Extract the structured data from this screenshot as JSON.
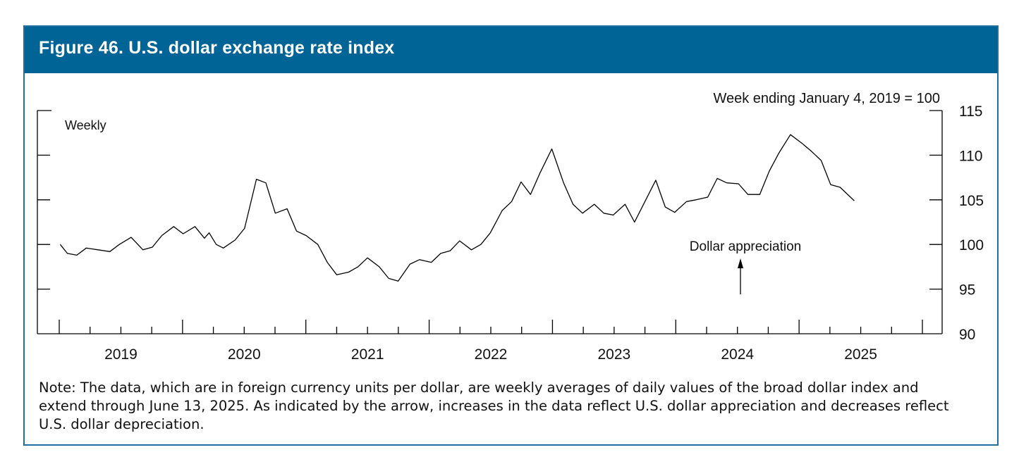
{
  "figure": {
    "title": "Figure 46. U.S. dollar exchange rate index",
    "note": "Note: The data, which are in foreign currency units per dollar, are weekly averages of daily values of the broad dollar index and extend through June 13, 2025. As indicated by the arrow, increases in the data reflect U.S. dollar appreciation and decreases reflect U.S. dollar depreciation."
  },
  "colors": {
    "header": "#006496",
    "line": "#000000"
  },
  "chart_data": {
    "type": "line",
    "title": "Figure 46. U.S. dollar exchange rate index",
    "frequency_label": "Weekly",
    "unit_label": "Week ending January 4, 2019 = 100",
    "annotation": {
      "text": "Dollar appreciation",
      "arrow": "up"
    },
    "ylim": [
      90,
      115
    ],
    "yticks": [
      90,
      95,
      100,
      105,
      110,
      115
    ],
    "xlim": [
      "2019-01-04",
      "2025-12-31"
    ],
    "xtick_labels": [
      "2019",
      "2020",
      "2021",
      "2022",
      "2023",
      "2024",
      "2025"
    ],
    "series": [
      {
        "x": [
          "2019-01-04",
          "2019-01-25",
          "2019-02-22",
          "2019-03-22",
          "2019-04-26",
          "2019-05-31",
          "2019-06-28",
          "2019-08-02",
          "2019-09-06",
          "2019-10-04",
          "2019-11-01",
          "2019-12-06",
          "2020-01-03",
          "2020-02-07",
          "2020-03-06",
          "2020-03-20",
          "2020-04-10",
          "2020-05-01",
          "2020-06-05",
          "2020-07-03",
          "2020-08-07",
          "2020-09-04",
          "2020-10-02",
          "2020-11-06",
          "2020-12-04",
          "2021-01-01",
          "2021-02-05",
          "2021-03-05",
          "2021-04-02",
          "2021-05-07",
          "2021-06-04",
          "2021-07-02",
          "2021-08-06",
          "2021-09-03",
          "2021-10-01",
          "2021-11-05",
          "2021-12-03",
          "2022-01-07",
          "2022-02-04",
          "2022-03-04",
          "2022-04-01",
          "2022-05-06",
          "2022-06-03",
          "2022-07-01",
          "2022-08-05",
          "2022-09-02",
          "2022-09-30",
          "2022-10-28",
          "2022-11-25",
          "2022-12-30",
          "2023-02-03",
          "2023-03-03",
          "2023-03-31",
          "2023-05-05",
          "2023-06-02",
          "2023-06-30",
          "2023-08-04",
          "2023-09-01",
          "2023-09-29",
          "2023-11-03",
          "2023-12-01",
          "2023-12-29",
          "2024-02-02",
          "2024-03-01",
          "2024-04-05",
          "2024-05-03",
          "2024-05-31",
          "2024-07-05",
          "2024-08-02",
          "2024-09-06",
          "2024-10-04",
          "2024-11-01",
          "2024-12-06",
          "2025-01-10",
          "2025-02-07",
          "2025-03-07",
          "2025-04-04",
          "2025-05-02",
          "2025-06-13"
        ],
        "values": [
          100.0,
          99.0,
          98.8,
          99.6,
          99.4,
          99.2,
          100.0,
          100.8,
          99.4,
          99.7,
          101.0,
          102.0,
          101.2,
          102.0,
          100.7,
          101.3,
          100.0,
          99.6,
          100.5,
          101.8,
          107.3,
          106.9,
          103.5,
          104.0,
          101.5,
          101.0,
          100.0,
          98.0,
          96.6,
          96.9,
          97.5,
          98.5,
          97.5,
          96.2,
          95.9,
          97.8,
          98.3,
          98.0,
          99.0,
          99.3,
          100.4,
          99.4,
          100.0,
          101.3,
          103.8,
          104.8,
          107.0,
          105.6,
          108.0,
          110.7,
          106.9,
          104.5,
          103.5,
          104.5,
          103.5,
          103.3,
          104.5,
          102.5,
          104.6,
          107.2,
          104.2,
          103.6,
          104.8,
          105.0,
          105.3,
          107.4,
          106.9,
          106.8,
          105.6,
          105.6,
          108.2,
          110.2,
          112.3,
          111.3,
          110.4,
          109.4,
          106.7,
          106.4,
          104.9
        ]
      }
    ]
  }
}
